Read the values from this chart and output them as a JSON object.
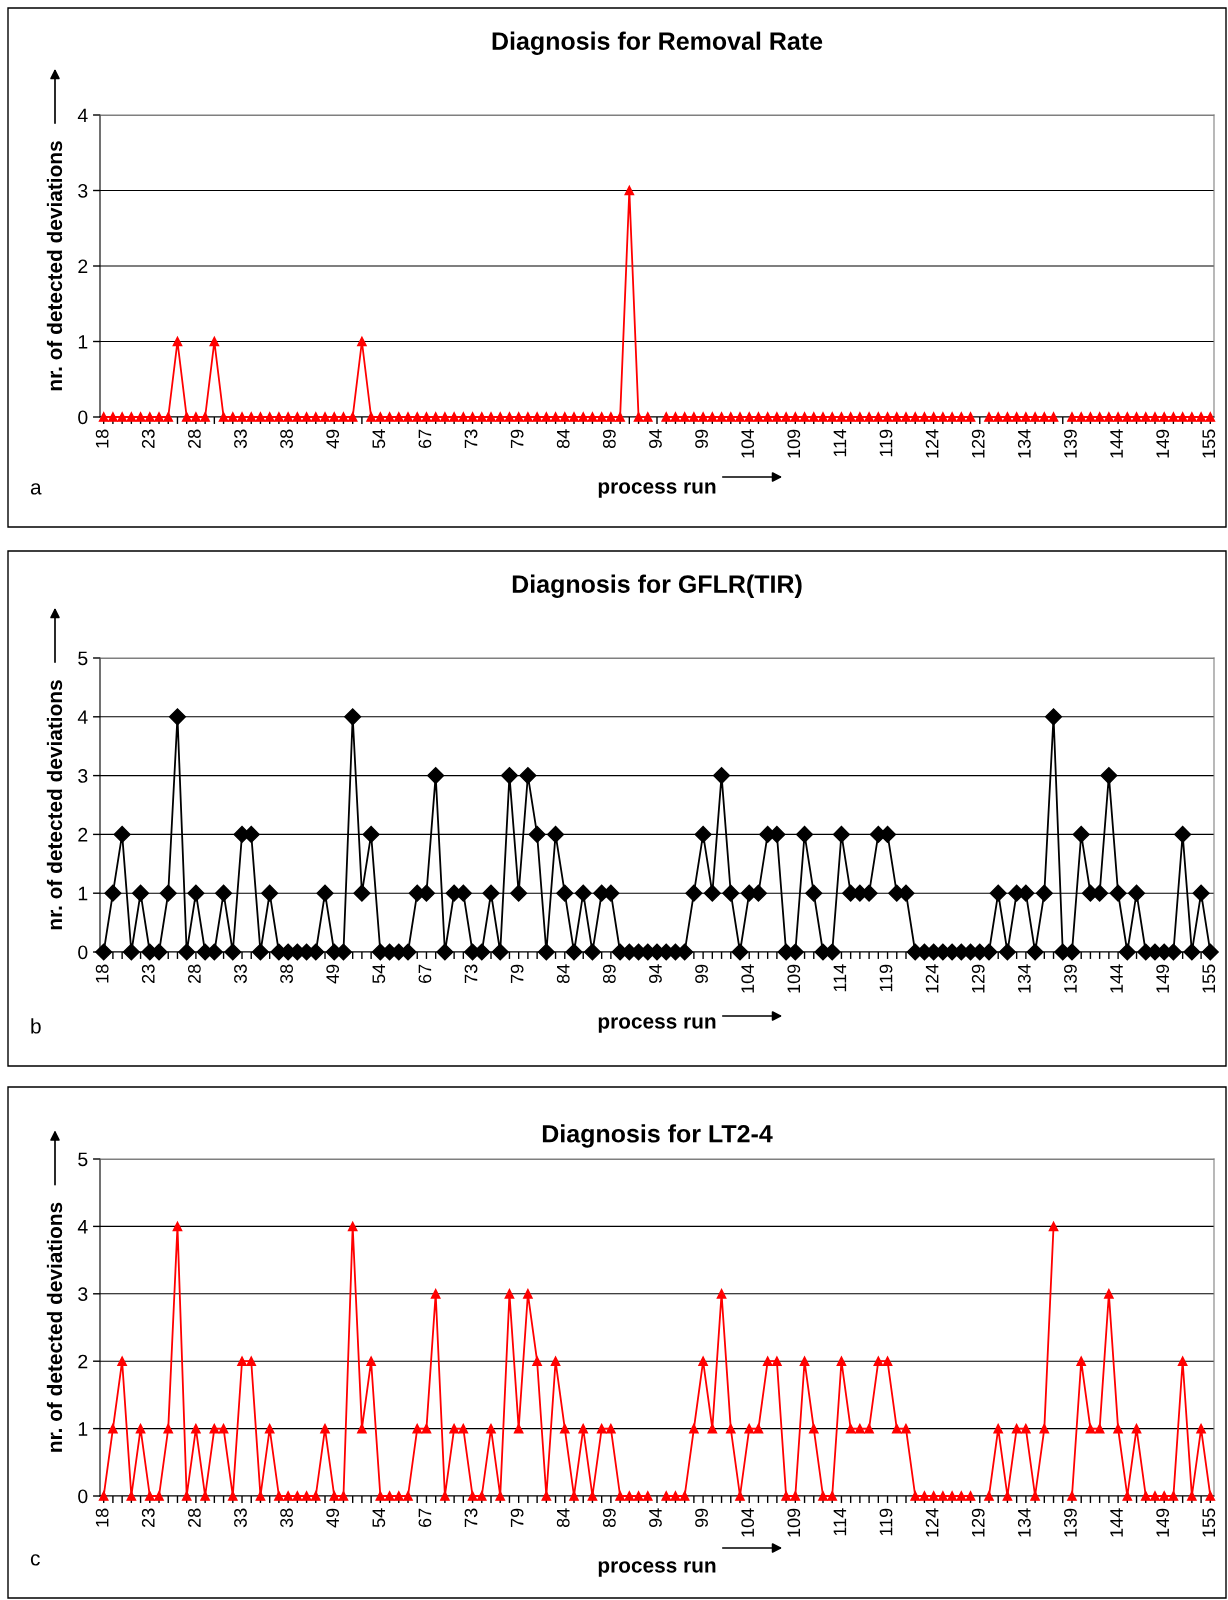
{
  "chart_data": [
    {
      "type": "line",
      "title": "Diagnosis for Removal Rate",
      "xlabel": "process run",
      "ylabel": "nr. of detected deviations",
      "annotations": [
        "a"
      ],
      "categories": [
        "18",
        null,
        null,
        null,
        null,
        "23",
        null,
        null,
        null,
        null,
        "28",
        null,
        null,
        null,
        null,
        "33",
        null,
        null,
        null,
        null,
        "38",
        null,
        null,
        null,
        null,
        "49",
        null,
        null,
        null,
        null,
        "54",
        null,
        null,
        null,
        null,
        "67",
        null,
        null,
        null,
        null,
        "73",
        null,
        null,
        null,
        null,
        "79",
        null,
        null,
        null,
        null,
        "84",
        null,
        null,
        null,
        null,
        "89",
        null,
        null,
        null,
        null,
        "94",
        null,
        null,
        null,
        null,
        "99",
        null,
        null,
        null,
        null,
        "104",
        null,
        null,
        null,
        null,
        "109",
        null,
        null,
        null,
        null,
        "114",
        null,
        null,
        null,
        null,
        "119",
        null,
        null,
        null,
        null,
        "124",
        null,
        null,
        null,
        null,
        "129",
        null,
        null,
        null,
        null,
        "134",
        null,
        null,
        null,
        null,
        "139",
        null,
        null,
        null,
        null,
        "144",
        null,
        null,
        null,
        null,
        "149",
        null,
        null,
        null,
        null,
        "155"
      ],
      "series": [
        {
          "color": "#ff0000",
          "values": [
            0,
            0,
            0,
            0,
            0,
            0,
            0,
            0,
            1,
            0,
            0,
            0,
            1,
            0,
            0,
            0,
            0,
            0,
            0,
            0,
            0,
            0,
            0,
            0,
            0,
            0,
            0,
            0,
            1,
            0,
            0,
            0,
            0,
            0,
            0,
            0,
            0,
            0,
            0,
            0,
            0,
            0,
            0,
            0,
            0,
            0,
            0,
            0,
            0,
            0,
            0,
            0,
            0,
            0,
            0,
            0,
            0,
            3,
            0,
            0,
            null,
            0,
            0,
            0,
            0,
            0,
            0,
            0,
            0,
            0,
            0,
            0,
            0,
            0,
            0,
            0,
            0,
            0,
            0,
            0,
            0,
            0,
            0,
            0,
            0,
            0,
            0,
            0,
            0,
            0,
            0,
            0,
            0,
            0,
            0,
            null,
            0,
            0,
            0,
            0,
            0,
            0,
            0,
            0,
            null,
            0,
            0,
            0,
            0,
            0,
            0,
            0,
            0,
            0,
            0,
            0,
            0,
            0,
            0,
            0,
            0
          ]
        }
      ],
      "ylim": [
        0,
        4
      ],
      "yticks": [
        0,
        1,
        2,
        3,
        4
      ],
      "grid": "y",
      "marker": "triangle",
      "line_style": "solid"
    },
    {
      "type": "line",
      "title": "Diagnosis for GFLR(TIR)",
      "xlabel": "process run",
      "ylabel": "nr. of detected deviations",
      "annotations": [
        "b"
      ],
      "categories": [
        "18",
        null,
        null,
        null,
        null,
        "23",
        null,
        null,
        null,
        null,
        "28",
        null,
        null,
        null,
        null,
        "33",
        null,
        null,
        null,
        null,
        "38",
        null,
        null,
        null,
        null,
        "49",
        null,
        null,
        null,
        null,
        "54",
        null,
        null,
        null,
        null,
        "67",
        null,
        null,
        null,
        null,
        "73",
        null,
        null,
        null,
        null,
        "79",
        null,
        null,
        null,
        null,
        "84",
        null,
        null,
        null,
        null,
        "89",
        null,
        null,
        null,
        null,
        "94",
        null,
        null,
        null,
        null,
        "99",
        null,
        null,
        null,
        null,
        "104",
        null,
        null,
        null,
        null,
        "109",
        null,
        null,
        null,
        null,
        "114",
        null,
        null,
        null,
        null,
        "119",
        null,
        null,
        null,
        null,
        "124",
        null,
        null,
        null,
        null,
        "129",
        null,
        null,
        null,
        null,
        "134",
        null,
        null,
        null,
        null,
        "139",
        null,
        null,
        null,
        null,
        "144",
        null,
        null,
        null,
        null,
        "149",
        null,
        null,
        null,
        null,
        "155"
      ],
      "series": [
        {
          "color": "#000000",
          "values": [
            0,
            1,
            2,
            0,
            1,
            0,
            0,
            1,
            4,
            0,
            1,
            0,
            0,
            1,
            0,
            2,
            2,
            0,
            1,
            0,
            0,
            0,
            0,
            0,
            1,
            0,
            0,
            4,
            1,
            2,
            0,
            0,
            0,
            0,
            1,
            1,
            3,
            0,
            1,
            1,
            0,
            0,
            1,
            0,
            3,
            1,
            3,
            2,
            0,
            2,
            1,
            0,
            1,
            0,
            1,
            1,
            0,
            0,
            0,
            0,
            0,
            0,
            0,
            0,
            1,
            2,
            1,
            3,
            1,
            0,
            1,
            1,
            2,
            2,
            0,
            0,
            2,
            1,
            0,
            0,
            2,
            1,
            1,
            1,
            2,
            2,
            1,
            1,
            0,
            0,
            0,
            0,
            0,
            0,
            0,
            0,
            0,
            1,
            0,
            1,
            1,
            0,
            1,
            4,
            0,
            0,
            2,
            1,
            1,
            3,
            1,
            0,
            1,
            0,
            0,
            0,
            0,
            2,
            0,
            1,
            0
          ]
        }
      ],
      "ylim": [
        0,
        5
      ],
      "yticks": [
        0,
        1,
        2,
        3,
        4,
        5
      ],
      "grid": "y",
      "marker": "diamond",
      "line_style": "solid"
    },
    {
      "type": "line",
      "title": "Diagnosis for LT2-4",
      "xlabel": "process run",
      "ylabel": "nr. of detected deviations",
      "annotations": [
        "c"
      ],
      "categories": [
        "18",
        null,
        null,
        null,
        null,
        "23",
        null,
        null,
        null,
        null,
        "28",
        null,
        null,
        null,
        null,
        "33",
        null,
        null,
        null,
        null,
        "38",
        null,
        null,
        null,
        null,
        "49",
        null,
        null,
        null,
        null,
        "54",
        null,
        null,
        null,
        null,
        "67",
        null,
        null,
        null,
        null,
        "73",
        null,
        null,
        null,
        null,
        "79",
        null,
        null,
        null,
        null,
        "84",
        null,
        null,
        null,
        null,
        "89",
        null,
        null,
        null,
        null,
        "94",
        null,
        null,
        null,
        null,
        "99",
        null,
        null,
        null,
        null,
        "104",
        null,
        null,
        null,
        null,
        "109",
        null,
        null,
        null,
        null,
        "114",
        null,
        null,
        null,
        null,
        "119",
        null,
        null,
        null,
        null,
        "124",
        null,
        null,
        null,
        null,
        "129",
        null,
        null,
        null,
        null,
        "134",
        null,
        null,
        null,
        null,
        "139",
        null,
        null,
        null,
        null,
        "144",
        null,
        null,
        null,
        null,
        "149",
        null,
        null,
        null,
        null,
        "155"
      ],
      "series": [
        {
          "color": "#ff0000",
          "values": [
            0,
            1,
            2,
            0,
            1,
            0,
            0,
            1,
            4,
            0,
            1,
            0,
            1,
            1,
            0,
            2,
            2,
            0,
            1,
            0,
            0,
            0,
            0,
            0,
            1,
            0,
            0,
            4,
            1,
            2,
            0,
            0,
            0,
            0,
            1,
            1,
            3,
            0,
            1,
            1,
            0,
            0,
            1,
            0,
            3,
            1,
            3,
            2,
            0,
            2,
            1,
            0,
            1,
            0,
            1,
            1,
            0,
            0,
            0,
            0,
            null,
            0,
            0,
            0,
            1,
            2,
            1,
            3,
            1,
            0,
            1,
            1,
            2,
            2,
            0,
            0,
            2,
            1,
            0,
            0,
            2,
            1,
            1,
            1,
            2,
            2,
            1,
            1,
            0,
            0,
            0,
            0,
            0,
            0,
            0,
            null,
            0,
            1,
            0,
            1,
            1,
            0,
            1,
            4,
            null,
            0,
            2,
            1,
            1,
            3,
            1,
            0,
            1,
            0,
            0,
            0,
            0,
            2,
            0,
            1,
            0
          ]
        }
      ],
      "ylim": [
        0,
        5
      ],
      "yticks": [
        0,
        1,
        2,
        3,
        4,
        5
      ],
      "grid": "y",
      "marker": "triangle",
      "line_style": "solid"
    }
  ]
}
